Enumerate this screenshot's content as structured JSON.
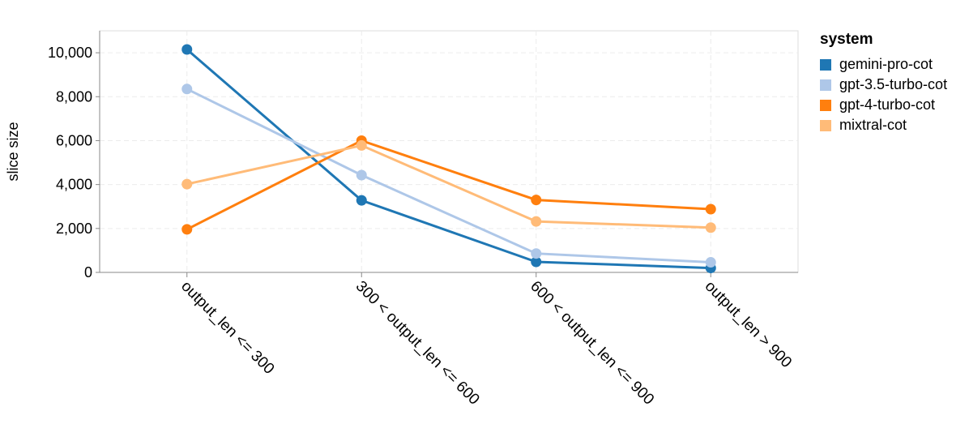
{
  "chart_data": {
    "type": "line",
    "title": "",
    "xlabel": "",
    "ylabel": "slice size",
    "ylim": [
      0,
      11000
    ],
    "yticks": [
      0,
      2000,
      4000,
      6000,
      8000,
      10000
    ],
    "ytick_labels": [
      "0",
      "2,000",
      "4,000",
      "6,000",
      "8,000",
      "10,000"
    ],
    "categories": [
      "output_len <= 300",
      "300 < output_len <= 600",
      "600 < output_len <= 900",
      "output_len > 900"
    ],
    "grid": true,
    "legend_title": "system",
    "legend_position": "right",
    "series": [
      {
        "name": "gemini-pro-cot",
        "color": "#1f77b4",
        "values": [
          10150,
          3280,
          480,
          200
        ]
      },
      {
        "name": "gpt-3.5-turbo-cot",
        "color": "#aec7e8",
        "values": [
          8350,
          4430,
          860,
          460
        ]
      },
      {
        "name": "gpt-4-turbo-cot",
        "color": "#ff7f0e",
        "values": [
          1960,
          6000,
          3300,
          2880
        ]
      },
      {
        "name": "mixtral-cot",
        "color": "#ffbb78",
        "values": [
          4020,
          5780,
          2320,
          2040
        ]
      }
    ]
  }
}
